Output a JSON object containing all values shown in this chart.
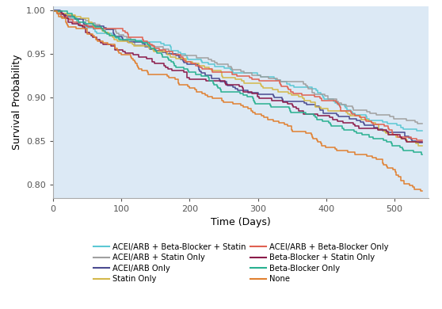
{
  "xlabel": "Time (Days)",
  "ylabel": "Survival Probability",
  "xlim": [
    0,
    550
  ],
  "ylim": [
    0.785,
    1.005
  ],
  "yticks": [
    0.8,
    0.85,
    0.9,
    0.95,
    1.0
  ],
  "xticks": [
    0,
    100,
    200,
    300,
    400,
    500
  ],
  "background_color": "#dce9f5",
  "figsize": [
    5.58,
    3.9
  ],
  "dpi": 100,
  "curve_params": [
    {
      "label": "ACEI/ARB + Beta-Blocker + Statin",
      "color": "#5bc8d4",
      "end_val": 0.862,
      "rate": 0.000255,
      "seed": 11
    },
    {
      "label": "ACEI/ARB + Statin Only",
      "color": "#a0a0a0",
      "end_val": 0.87,
      "rate": 0.000238,
      "seed": 22
    },
    {
      "label": "ACEI/ARB Only",
      "color": "#4a4a90",
      "end_val": 0.848,
      "rate": 0.000281,
      "seed": 33
    },
    {
      "label": "Statin Only",
      "color": "#d4b84a",
      "end_val": 0.845,
      "rate": 0.000286,
      "seed": 44
    },
    {
      "label": "ACEI/ARB + Beta-Blocker Only",
      "color": "#e06050",
      "end_val": 0.851,
      "rate": 0.000275,
      "seed": 55
    },
    {
      "label": "Beta-Blocker + Statin Only",
      "color": "#8b1a4a",
      "end_val": 0.849,
      "rate": 0.000278,
      "seed": 66
    },
    {
      "label": "Beta-Blocker Only",
      "color": "#28b090",
      "end_val": 0.835,
      "rate": 0.000305,
      "seed": 77
    },
    {
      "label": "None",
      "color": "#e08030",
      "end_val": 0.793,
      "rate": 0.00039,
      "seed": 88
    }
  ],
  "legend_entries_left": [
    {
      "label": "ACEI/ARB + Beta-Blocker + Statin",
      "color": "#5bc8d4"
    },
    {
      "label": "ACEI/ARB + Statin Only",
      "color": "#a0a0a0"
    },
    {
      "label": "ACEI/ARB Only",
      "color": "#4a4a90"
    },
    {
      "label": "Statin Only",
      "color": "#d4b84a"
    }
  ],
  "legend_entries_right": [
    {
      "label": "ACEI/ARB + Beta-Blocker Only",
      "color": "#e06050"
    },
    {
      "label": "Beta-Blocker + Statin Only",
      "color": "#8b1a4a"
    },
    {
      "label": "Beta-Blocker Only",
      "color": "#28b090"
    },
    {
      "label": "None",
      "color": "#e08030"
    }
  ]
}
